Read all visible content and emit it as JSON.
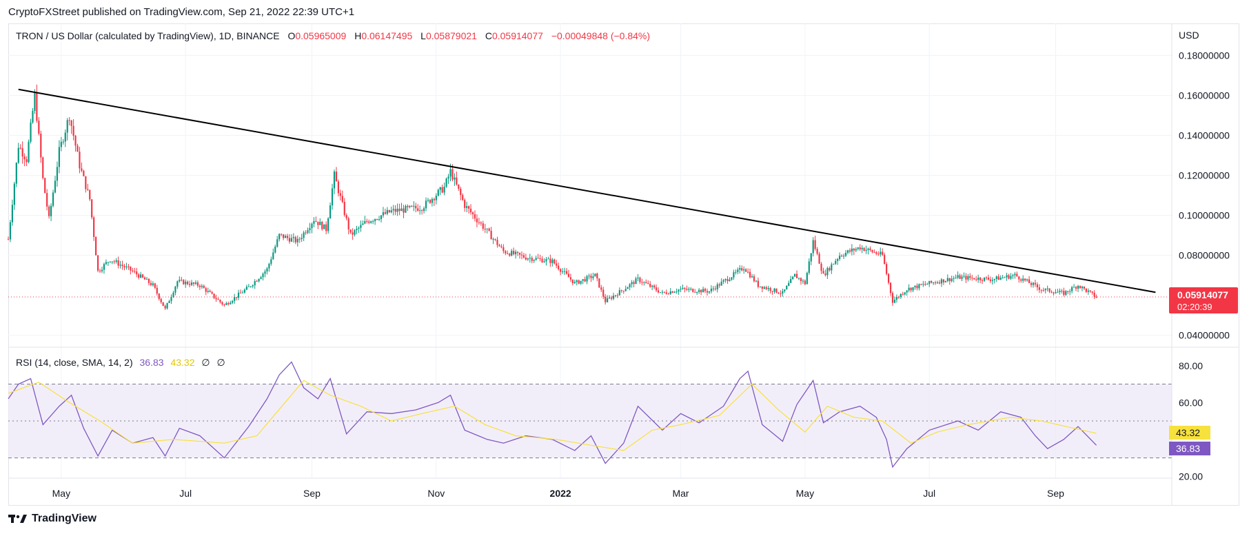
{
  "header": {
    "published": "CryptoFXStreet published on TradingView.com, Sep 21, 2022 22:39 UTC+1"
  },
  "legend": {
    "symbol": "TRON / US Dollar (calculated by TradingView), 1D, BINANCE",
    "o_label": "O",
    "o_value": "0.05965009",
    "h_label": "H",
    "h_value": "0.06147495",
    "l_label": "L",
    "l_value": "0.05879021",
    "c_label": "C",
    "c_value": "0.05914077",
    "change": "−0.00049848 (−0.84%)"
  },
  "price_axis": {
    "currency": "USD",
    "last_price": "0.05914077",
    "countdown": "02:20:39"
  },
  "rsi_legend": {
    "label": "RSI (14, close, SMA, 14, 2)",
    "rsi_value": "36.83",
    "sma_value": "43.32",
    "extra1": "∅",
    "extra2": "∅"
  },
  "footer": {
    "brand": "TradingView"
  },
  "colors": {
    "up": "#089981",
    "down": "#f23645",
    "rsi": "#7e57c2",
    "rsi_sma": "#f7e13c",
    "trendline": "#000000",
    "band": "#ede7f6"
  },
  "chart_data": [
    {
      "type": "candlestick",
      "title": "TRON / US Dollar (calculated by TradingView), 1D, BINANCE",
      "x_ticks": [
        "May",
        "Jul",
        "Sep",
        "Nov",
        "2022",
        "Mar",
        "May",
        "Jul",
        "Sep"
      ],
      "y_ticks": [
        "0.18000000",
        "0.16000000",
        "0.14000000",
        "0.12000000",
        "0.10000000",
        "0.08000000",
        "0.04000000"
      ],
      "ylim": [
        0.034,
        0.196
      ],
      "x_range": [
        "2021-04-05",
        "2022-10-28"
      ],
      "price_path": [
        [
          "2021-04-05",
          0.088
        ],
        [
          "2021-04-10",
          0.135
        ],
        [
          "2021-04-14",
          0.128
        ],
        [
          "2021-04-18",
          0.16
        ],
        [
          "2021-04-22",
          0.118
        ],
        [
          "2021-04-25",
          0.098
        ],
        [
          "2021-04-30",
          0.132
        ],
        [
          "2021-05-05",
          0.15
        ],
        [
          "2021-05-10",
          0.125
        ],
        [
          "2021-05-15",
          0.108
        ],
        [
          "2021-05-19",
          0.072
        ],
        [
          "2021-05-25",
          0.078
        ],
        [
          "2021-06-05",
          0.072
        ],
        [
          "2021-06-15",
          0.065
        ],
        [
          "2021-06-21",
          0.053
        ],
        [
          "2021-06-27",
          0.067
        ],
        [
          "2021-07-08",
          0.065
        ],
        [
          "2021-07-20",
          0.055
        ],
        [
          "2021-08-01",
          0.064
        ],
        [
          "2021-08-10",
          0.073
        ],
        [
          "2021-08-16",
          0.09
        ],
        [
          "2021-08-25",
          0.087
        ],
        [
          "2021-09-02",
          0.098
        ],
        [
          "2021-09-08",
          0.093
        ],
        [
          "2021-09-12",
          0.12
        ],
        [
          "2021-09-20",
          0.09
        ],
        [
          "2021-09-28",
          0.097
        ],
        [
          "2021-10-10",
          0.102
        ],
        [
          "2021-10-25",
          0.104
        ],
        [
          "2021-11-05",
          0.114
        ],
        [
          "2021-11-08",
          0.122
        ],
        [
          "2021-11-15",
          0.105
        ],
        [
          "2021-11-26",
          0.092
        ],
        [
          "2021-12-04",
          0.082
        ],
        [
          "2021-12-15",
          0.079
        ],
        [
          "2021-12-28",
          0.077
        ],
        [
          "2022-01-08",
          0.066
        ],
        [
          "2022-01-18",
          0.07
        ],
        [
          "2022-01-23",
          0.057
        ],
        [
          "2022-02-01",
          0.063
        ],
        [
          "2022-02-08",
          0.068
        ],
        [
          "2022-02-20",
          0.061
        ],
        [
          "2022-03-01",
          0.063
        ],
        [
          "2022-03-15",
          0.062
        ],
        [
          "2022-03-28",
          0.071
        ],
        [
          "2022-04-01",
          0.074
        ],
        [
          "2022-04-08",
          0.065
        ],
        [
          "2022-04-20",
          0.061
        ],
        [
          "2022-04-26",
          0.07
        ],
        [
          "2022-05-01",
          0.066
        ],
        [
          "2022-05-05",
          0.087
        ],
        [
          "2022-05-10",
          0.07
        ],
        [
          "2022-05-18",
          0.08
        ],
        [
          "2022-05-28",
          0.084
        ],
        [
          "2022-06-08",
          0.08
        ],
        [
          "2022-06-13",
          0.057
        ],
        [
          "2022-06-20",
          0.063
        ],
        [
          "2022-07-01",
          0.066
        ],
        [
          "2022-07-15",
          0.069
        ],
        [
          "2022-08-01",
          0.068
        ],
        [
          "2022-08-12",
          0.07
        ],
        [
          "2022-08-25",
          0.063
        ],
        [
          "2022-09-05",
          0.061
        ],
        [
          "2022-09-12",
          0.065
        ],
        [
          "2022-09-21",
          0.0591
        ]
      ],
      "trendline": [
        [
          "2021-04-10",
          0.163
        ],
        [
          "2022-10-20",
          0.0615
        ]
      ],
      "last_price_line": 0.05914077
    },
    {
      "type": "line",
      "title": "RSI (14, close, SMA, 14, 2)",
      "y_ticks": [
        "80.00",
        "60.00",
        "20.00"
      ],
      "ylim": [
        19,
        90
      ],
      "bands": [
        30,
        50,
        70
      ],
      "series": [
        {
          "name": "RSI",
          "latest": 36.83,
          "points": [
            [
              "2021-04-05",
              62
            ],
            [
              "2021-04-10",
              70
            ],
            [
              "2021-04-16",
              73
            ],
            [
              "2021-04-22",
              48
            ],
            [
              "2021-04-30",
              58
            ],
            [
              "2021-05-06",
              64
            ],
            [
              "2021-05-12",
              46
            ],
            [
              "2021-05-19",
              31
            ],
            [
              "2021-05-26",
              45
            ],
            [
              "2021-06-05",
              38
            ],
            [
              "2021-06-15",
              41
            ],
            [
              "2021-06-21",
              31
            ],
            [
              "2021-06-28",
              46
            ],
            [
              "2021-07-08",
              42
            ],
            [
              "2021-07-20",
              30
            ],
            [
              "2021-08-01",
              47
            ],
            [
              "2021-08-10",
              62
            ],
            [
              "2021-08-16",
              75
            ],
            [
              "2021-08-22",
              82
            ],
            [
              "2021-08-28",
              68
            ],
            [
              "2021-09-04",
              62
            ],
            [
              "2021-09-10",
              73
            ],
            [
              "2021-09-18",
              43
            ],
            [
              "2021-09-28",
              55
            ],
            [
              "2021-10-10",
              54
            ],
            [
              "2021-10-22",
              56
            ],
            [
              "2021-11-02",
              60
            ],
            [
              "2021-11-08",
              64
            ],
            [
              "2021-11-15",
              45
            ],
            [
              "2021-11-26",
              40
            ],
            [
              "2021-12-04",
              38
            ],
            [
              "2021-12-15",
              42
            ],
            [
              "2021-12-28",
              40
            ],
            [
              "2022-01-08",
              34
            ],
            [
              "2022-01-16",
              42
            ],
            [
              "2022-01-23",
              27
            ],
            [
              "2022-02-01",
              38
            ],
            [
              "2022-02-08",
              58
            ],
            [
              "2022-02-20",
              45
            ],
            [
              "2022-03-01",
              54
            ],
            [
              "2022-03-10",
              49
            ],
            [
              "2022-03-22",
              58
            ],
            [
              "2022-03-30",
              73
            ],
            [
              "2022-04-03",
              77
            ],
            [
              "2022-04-10",
              48
            ],
            [
              "2022-04-20",
              39
            ],
            [
              "2022-04-27",
              59
            ],
            [
              "2022-05-05",
              72
            ],
            [
              "2022-05-10",
              49
            ],
            [
              "2022-05-18",
              55
            ],
            [
              "2022-05-28",
              58
            ],
            [
              "2022-06-05",
              52
            ],
            [
              "2022-06-10",
              40
            ],
            [
              "2022-06-13",
              25
            ],
            [
              "2022-06-20",
              35
            ],
            [
              "2022-07-01",
              45
            ],
            [
              "2022-07-15",
              50
            ],
            [
              "2022-07-25",
              45
            ],
            [
              "2022-08-05",
              55
            ],
            [
              "2022-08-15",
              52
            ],
            [
              "2022-08-22",
              42
            ],
            [
              "2022-08-28",
              35
            ],
            [
              "2022-09-05",
              40
            ],
            [
              "2022-09-12",
              47
            ],
            [
              "2022-09-21",
              36.83
            ]
          ]
        },
        {
          "name": "RSI-based MA",
          "latest": 43.32,
          "points": [
            [
              "2021-04-05",
              65
            ],
            [
              "2021-04-20",
              71
            ],
            [
              "2021-05-05",
              60
            ],
            [
              "2021-05-20",
              50
            ],
            [
              "2021-06-05",
              38
            ],
            [
              "2021-06-25",
              40
            ],
            [
              "2021-07-20",
              38
            ],
            [
              "2021-08-05",
              42
            ],
            [
              "2021-08-15",
              55
            ],
            [
              "2021-08-28",
              72
            ],
            [
              "2021-09-10",
              64
            ],
            [
              "2021-09-25",
              58
            ],
            [
              "2021-10-10",
              50
            ],
            [
              "2021-10-25",
              54
            ],
            [
              "2021-11-10",
              58
            ],
            [
              "2021-11-25",
              48
            ],
            [
              "2021-12-10",
              42
            ],
            [
              "2021-12-30",
              40
            ],
            [
              "2022-01-15",
              37
            ],
            [
              "2022-02-01",
              34
            ],
            [
              "2022-02-15",
              45
            ],
            [
              "2022-03-01",
              48
            ],
            [
              "2022-03-20",
              53
            ],
            [
              "2022-04-05",
              70
            ],
            [
              "2022-04-18",
              56
            ],
            [
              "2022-05-01",
              44
            ],
            [
              "2022-05-12",
              58
            ],
            [
              "2022-05-25",
              52
            ],
            [
              "2022-06-08",
              50
            ],
            [
              "2022-06-22",
              38
            ],
            [
              "2022-07-05",
              44
            ],
            [
              "2022-07-20",
              48
            ],
            [
              "2022-08-10",
              52
            ],
            [
              "2022-08-25",
              50
            ],
            [
              "2022-09-21",
              43.32
            ]
          ]
        }
      ]
    }
  ]
}
